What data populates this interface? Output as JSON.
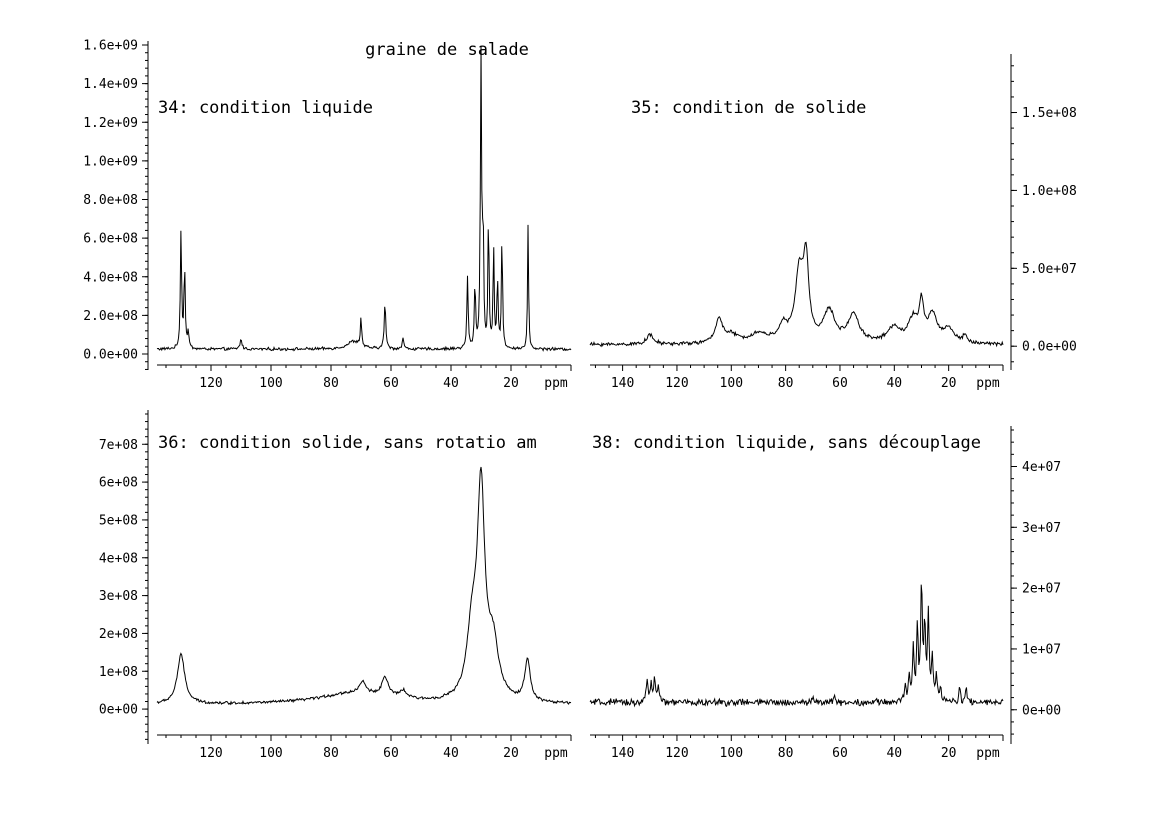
{
  "figure": {
    "title": "graine de salade"
  },
  "chart_data": [
    {
      "type": "line",
      "title": "34: condition liquide",
      "xlabel": "ppm",
      "ylabel": "",
      "xlim": [
        138,
        0
      ],
      "ylim": [
        0,
        1600000000.0
      ],
      "x_ticks": [
        120,
        100,
        80,
        60,
        40,
        20
      ],
      "y_ticks": [
        {
          "value": 0,
          "label": "0.0e+00"
        },
        {
          "value": 200000000.0,
          "label": "2.0e+08"
        },
        {
          "value": 400000000.0,
          "label": "4.0e+08"
        },
        {
          "value": 600000000.0,
          "label": "6.0e+08"
        },
        {
          "value": 800000000.0,
          "label": "8.0e+08"
        },
        {
          "value": 1000000000.0,
          "label": "1.0e+09"
        },
        {
          "value": 1200000000.0,
          "label": "1.2e+09"
        },
        {
          "value": 1400000000.0,
          "label": "1.4e+09"
        },
        {
          "value": 1600000000.0,
          "label": "1.6e+09"
        }
      ],
      "y_axis_side": "left",
      "baseline": 25000000.0,
      "noise": 6000000.0,
      "peaks": [
        {
          "x": 130.0,
          "y": 610000000.0,
          "w": 0.25
        },
        {
          "x": 128.8,
          "y": 420000000.0,
          "w": 0.25
        },
        {
          "x": 127.6,
          "y": 80000000.0,
          "w": 0.3
        },
        {
          "x": 110.0,
          "y": 50000000.0,
          "w": 0.4
        },
        {
          "x": 72.5,
          "y": 40000000.0,
          "w": 2.5
        },
        {
          "x": 70.0,
          "y": 150000000.0,
          "w": 0.25
        },
        {
          "x": 62.0,
          "y": 240000000.0,
          "w": 0.3
        },
        {
          "x": 56.0,
          "y": 60000000.0,
          "w": 0.3
        },
        {
          "x": 34.5,
          "y": 370000000.0,
          "w": 0.25
        },
        {
          "x": 32.0,
          "y": 330000000.0,
          "w": 0.25
        },
        {
          "x": 30.0,
          "y": 1510000000.0,
          "w": 0.25
        },
        {
          "x": 29.3,
          "y": 600000000.0,
          "w": 0.22
        },
        {
          "x": 27.5,
          "y": 700000000.0,
          "w": 0.22
        },
        {
          "x": 25.8,
          "y": 530000000.0,
          "w": 0.22
        },
        {
          "x": 24.5,
          "y": 350000000.0,
          "w": 0.25
        },
        {
          "x": 23.0,
          "y": 600000000.0,
          "w": 0.22
        },
        {
          "x": 14.3,
          "y": 650000000.0,
          "w": 0.2
        }
      ]
    },
    {
      "type": "line",
      "title": "35: condition de solide",
      "xlabel": "ppm",
      "ylabel": "",
      "xlim": [
        152,
        0
      ],
      "ylim": [
        -5000000.0,
        185000000.0
      ],
      "x_ticks": [
        140,
        120,
        100,
        80,
        60,
        40,
        20
      ],
      "y_ticks": [
        {
          "value": 0,
          "label": "0.0e+00"
        },
        {
          "value": 50000000.0,
          "label": "5.0e+07"
        },
        {
          "value": 100000000.0,
          "label": "1.0e+08"
        },
        {
          "value": 150000000.0,
          "label": "1.5e+08"
        }
      ],
      "y_axis_side": "right",
      "baseline": 1000000.0,
      "noise": 900000.0,
      "peaks": [
        {
          "x": 130.0,
          "y": 6000000.0,
          "w": 1.5
        },
        {
          "x": 104.5,
          "y": 16000000.0,
          "w": 1.5
        },
        {
          "x": 100.0,
          "y": 5000000.0,
          "w": 3.0
        },
        {
          "x": 90.0,
          "y": 6000000.0,
          "w": 4.0
        },
        {
          "x": 81.0,
          "y": 10000000.0,
          "w": 2.0
        },
        {
          "x": 75.0,
          "y": 43000000.0,
          "w": 1.8
        },
        {
          "x": 72.5,
          "y": 48000000.0,
          "w": 1.2
        },
        {
          "x": 64.0,
          "y": 20000000.0,
          "w": 2.5
        },
        {
          "x": 55.0,
          "y": 18000000.0,
          "w": 2.5
        },
        {
          "x": 40.0,
          "y": 10000000.0,
          "w": 3.0
        },
        {
          "x": 33.0,
          "y": 15000000.0,
          "w": 2.0
        },
        {
          "x": 30.0,
          "y": 23000000.0,
          "w": 0.9
        },
        {
          "x": 26.0,
          "y": 18000000.0,
          "w": 2.0
        },
        {
          "x": 20.0,
          "y": 9000000.0,
          "w": 2.5
        },
        {
          "x": 14.0,
          "y": 5000000.0,
          "w": 0.8
        }
      ]
    },
    {
      "type": "line",
      "title": "36: condition solide, sans rotatio am",
      "xlabel": "ppm",
      "ylabel": "",
      "xlim": [
        138,
        0
      ],
      "ylim": [
        -50000000.0,
        780000000.0
      ],
      "x_ticks": [
        120,
        100,
        80,
        60,
        40,
        20
      ],
      "y_ticks": [
        {
          "value": 0,
          "label": "0e+00"
        },
        {
          "value": 100000000.0,
          "label": "1e+08"
        },
        {
          "value": 200000000.0,
          "label": "2e+08"
        },
        {
          "value": 300000000.0,
          "label": "3e+08"
        },
        {
          "value": 400000000.0,
          "label": "4e+08"
        },
        {
          "value": 500000000.0,
          "label": "5e+08"
        },
        {
          "value": 600000000.0,
          "label": "6e+08"
        },
        {
          "value": 700000000.0,
          "label": "7e+08"
        }
      ],
      "y_axis_side": "left",
      "baseline": 12000000.0,
      "noise": 3000000.0,
      "peaks": [
        {
          "x": 130.0,
          "y": 130000000.0,
          "w": 1.5
        },
        {
          "x": 72.0,
          "y": 30000000.0,
          "w": 14.0
        },
        {
          "x": 69.5,
          "y": 30000000.0,
          "w": 1.2
        },
        {
          "x": 62.0,
          "y": 50000000.0,
          "w": 1.3
        },
        {
          "x": 56.0,
          "y": 20000000.0,
          "w": 1.5
        },
        {
          "x": 33.0,
          "y": 170000000.0,
          "w": 2.0
        },
        {
          "x": 30.0,
          "y": 540000000.0,
          "w": 1.5
        },
        {
          "x": 26.0,
          "y": 140000000.0,
          "w": 2.2
        },
        {
          "x": 14.5,
          "y": 110000000.0,
          "w": 1.1
        }
      ]
    },
    {
      "type": "line",
      "title": "38: condition liquide, sans découplage",
      "xlabel": "ppm",
      "ylabel": "",
      "xlim": [
        152,
        0
      ],
      "ylim": [
        -3000000.0,
        46000000.0
      ],
      "x_ticks": [
        140,
        120,
        100,
        80,
        60,
        40,
        20
      ],
      "y_ticks": [
        {
          "value": 0,
          "label": "0e+00"
        },
        {
          "value": 10000000.0,
          "label": "1e+07"
        },
        {
          "value": 20000000.0,
          "label": "2e+07"
        },
        {
          "value": 30000000.0,
          "label": "3e+07"
        },
        {
          "value": 40000000.0,
          "label": "4e+07"
        }
      ],
      "y_axis_side": "right",
      "baseline": 1200000.0,
      "noise": 450000.0,
      "peaks": [
        {
          "x": 131.0,
          "y": 3800000.0,
          "w": 0.35
        },
        {
          "x": 129.5,
          "y": 3200000.0,
          "w": 0.35
        },
        {
          "x": 128.2,
          "y": 4000000.0,
          "w": 0.35
        },
        {
          "x": 126.8,
          "y": 2500000.0,
          "w": 0.35
        },
        {
          "x": 70.0,
          "y": 1000000.0,
          "w": 0.4
        },
        {
          "x": 62.0,
          "y": 1000000.0,
          "w": 0.4
        },
        {
          "x": 36.0,
          "y": 2500000.0,
          "w": 0.4
        },
        {
          "x": 34.5,
          "y": 4000000.0,
          "w": 0.35
        },
        {
          "x": 33.0,
          "y": 9000000.0,
          "w": 0.35
        },
        {
          "x": 31.5,
          "y": 12000000.0,
          "w": 0.35
        },
        {
          "x": 30.0,
          "y": 19500000.0,
          "w": 0.35
        },
        {
          "x": 28.8,
          "y": 12000000.0,
          "w": 0.35
        },
        {
          "x": 27.5,
          "y": 14000000.0,
          "w": 0.35
        },
        {
          "x": 26.0,
          "y": 7000000.0,
          "w": 0.35
        },
        {
          "x": 24.5,
          "y": 4500000.0,
          "w": 0.35
        },
        {
          "x": 23.0,
          "y": 2500000.0,
          "w": 0.35
        },
        {
          "x": 16.0,
          "y": 2500000.0,
          "w": 0.3
        },
        {
          "x": 13.5,
          "y": 2500000.0,
          "w": 0.3
        }
      ]
    }
  ]
}
